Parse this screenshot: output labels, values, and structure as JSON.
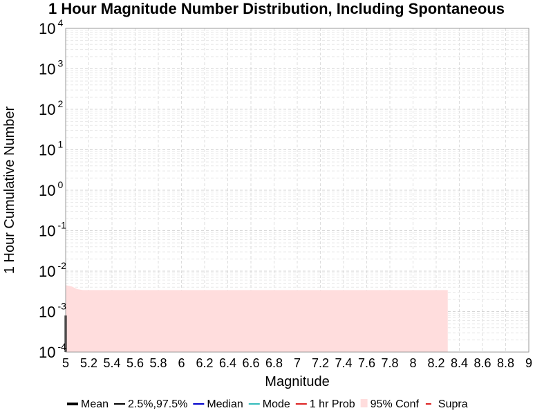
{
  "chart_data": {
    "type": "area",
    "title": "1 Hour Magnitude Number Distribution, Including Spontaneous",
    "xlabel": "Magnitude",
    "ylabel": "1 Hour Cumulative Number",
    "xlim": [
      5,
      9
    ],
    "ylim": [
      0.0001,
      10000
    ],
    "yscale": "log",
    "grid": true,
    "legend_placement": "bottom",
    "x_ticks": [
      "5",
      "5.2",
      "5.4",
      "5.6",
      "5.8",
      "6",
      "6.2",
      "6.4",
      "6.6",
      "6.8",
      "7",
      "7.2",
      "7.4",
      "7.6",
      "7.8",
      "8",
      "8.2",
      "8.4",
      "8.6",
      "8.8",
      "9"
    ],
    "y_ticks": [
      {
        "base": "10",
        "exp": "-4",
        "value": 0.0001
      },
      {
        "base": "10",
        "exp": "-3",
        "value": 0.001
      },
      {
        "base": "10",
        "exp": "-2",
        "value": 0.01
      },
      {
        "base": "10",
        "exp": "-1",
        "value": 0.1
      },
      {
        "base": "10",
        "exp": "0",
        "value": 1
      },
      {
        "base": "10",
        "exp": "1",
        "value": 10
      },
      {
        "base": "10",
        "exp": "2",
        "value": 100
      },
      {
        "base": "10",
        "exp": "3",
        "value": 1000
      },
      {
        "base": "10",
        "exp": "4",
        "value": 10000
      }
    ],
    "legend": [
      {
        "label": "Mean",
        "color": "#000000",
        "style": "thick-line"
      },
      {
        "label": "2.5%,97.5%",
        "color": "#000000",
        "style": "line"
      },
      {
        "label": "Median",
        "color": "#0000cc",
        "style": "line"
      },
      {
        "label": "Mode",
        "color": "#33bbbb",
        "style": "line"
      },
      {
        "label": "1 hr Prob",
        "color": "#dd2222",
        "style": "line"
      },
      {
        "label": "95% Conf",
        "color": "#ffdddd",
        "style": "patch"
      },
      {
        "label": "Supra",
        "color": "#dd2222",
        "style": "dash"
      }
    ],
    "series": [
      {
        "name": "95% Conf",
        "color": "#ffdddd",
        "x": [
          5.0,
          5.05,
          5.1,
          5.15,
          5.2,
          5.4,
          5.6,
          5.8,
          6.0,
          6.5,
          7.0,
          7.5,
          8.0,
          8.3
        ],
        "upper": [
          0.0045,
          0.0042,
          0.0036,
          0.0034,
          0.0034,
          0.0034,
          0.0034,
          0.0034,
          0.0034,
          0.0034,
          0.0034,
          0.0034,
          0.0034,
          0.0034
        ],
        "lower": [
          0.0001,
          0.0001,
          0.0001,
          0.0001,
          0.0001,
          0.0001,
          0.0001,
          0.0001,
          0.0001,
          0.0001,
          0.0001,
          0.0001,
          0.0001,
          0.0001
        ]
      },
      {
        "name": "Mean",
        "color": "#000000",
        "x": [
          5.0,
          5.0
        ],
        "y": [
          0.0008,
          0.0001
        ]
      }
    ]
  }
}
